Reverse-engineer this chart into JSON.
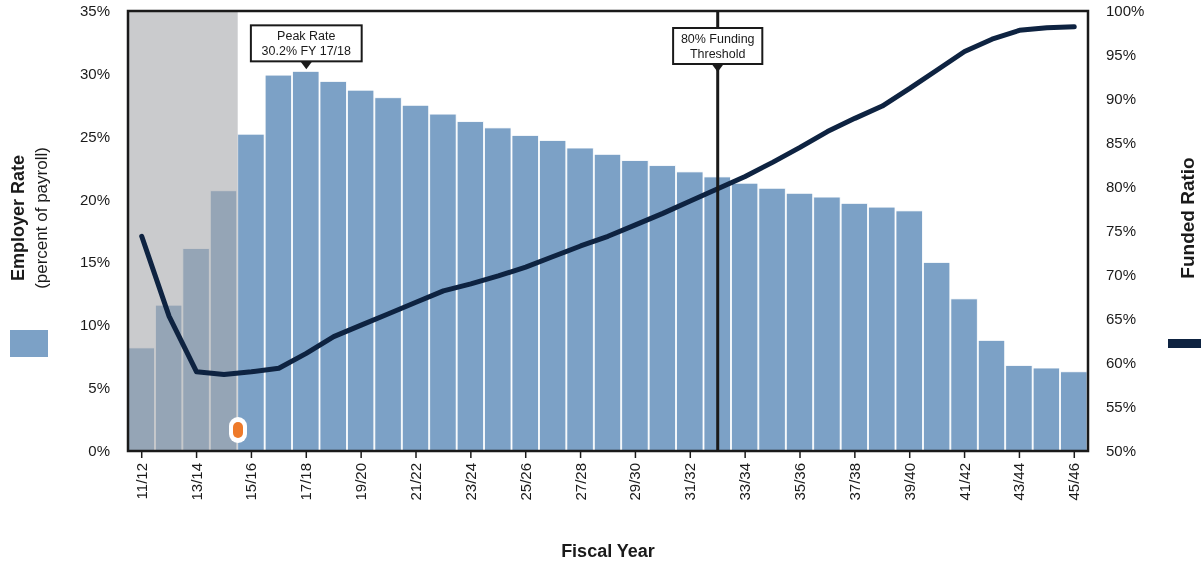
{
  "chart_data": {
    "type": "bar",
    "xlabel": "Fiscal Year",
    "ylabel": "Employer Rate (percent of payroll)",
    "y2label": "Funded Ratio",
    "categories": [
      "11/12",
      null,
      "13/14",
      null,
      "15/16",
      null,
      "17/18",
      null,
      "19/20",
      null,
      "21/22",
      null,
      "23/24",
      null,
      "25/26",
      null,
      "27/28",
      null,
      "29/30",
      null,
      "31/32",
      null,
      "33/34",
      null,
      "35/36",
      null,
      "37/38",
      null,
      "39/40",
      null,
      "41/42",
      null,
      "43/44",
      null,
      "45/46"
    ],
    "ylim": [
      0,
      35
    ],
    "yticks": [
      {
        "value": 0,
        "label": "0%"
      },
      {
        "value": 5,
        "label": "5%"
      },
      {
        "value": 10,
        "label": "10%"
      },
      {
        "value": 15,
        "label": "15%"
      },
      {
        "value": 20,
        "label": "20%"
      },
      {
        "value": 25,
        "label": "25%"
      },
      {
        "value": 30,
        "label": "30%"
      },
      {
        "value": 35,
        "label": "35%"
      }
    ],
    "y2lim": [
      50,
      100
    ],
    "y2ticks": [
      {
        "value": 50,
        "label": "50%"
      },
      {
        "value": 55,
        "label": "55%"
      },
      {
        "value": 60,
        "label": "60%"
      },
      {
        "value": 65,
        "label": "65%"
      },
      {
        "value": 70,
        "label": "70%"
      },
      {
        "value": 75,
        "label": "75%"
      },
      {
        "value": 80,
        "label": "80%"
      },
      {
        "value": 85,
        "label": "85%"
      },
      {
        "value": 90,
        "label": "90%"
      },
      {
        "value": 95,
        "label": "95%"
      },
      {
        "value": 100,
        "label": "100%"
      }
    ],
    "series": [
      {
        "color": "#7ca1c6",
        "values": [
          8.2,
          11.6,
          16.1,
          20.7,
          25.2,
          29.9,
          30.2,
          29.4,
          28.7,
          28.1,
          27.5,
          26.8,
          26.2,
          25.7,
          25.1,
          24.7,
          24.1,
          23.6,
          23.1,
          22.7,
          22.2,
          21.8,
          21.3,
          20.9,
          20.5,
          20.2,
          19.7,
          19.4,
          19.1,
          15.0,
          12.1,
          8.8,
          6.8,
          6.6,
          6.3
        ]
      },
      {
        "type": "line",
        "axis": "y2",
        "color": "#0e2341",
        "values": [
          74.4,
          65.3,
          59.0,
          58.7,
          59.0,
          59.4,
          61.1,
          63.0,
          64.3,
          65.6,
          66.9,
          68.2,
          69.0,
          69.9,
          70.9,
          72.1,
          73.3,
          74.4,
          75.7,
          77.0,
          78.4,
          79.8,
          81.2,
          82.8,
          84.5,
          86.3,
          87.8,
          89.2,
          91.2,
          93.3,
          95.4,
          96.8,
          97.8,
          98.1,
          98.2
        ]
      }
    ],
    "annotations": [
      "80% Funding\nThreshold",
      {
        "text": "Peak Rate\n30.2% FY 17/18",
        "x": "17/18",
        "y": 30.2
      }
    ]
  }
}
